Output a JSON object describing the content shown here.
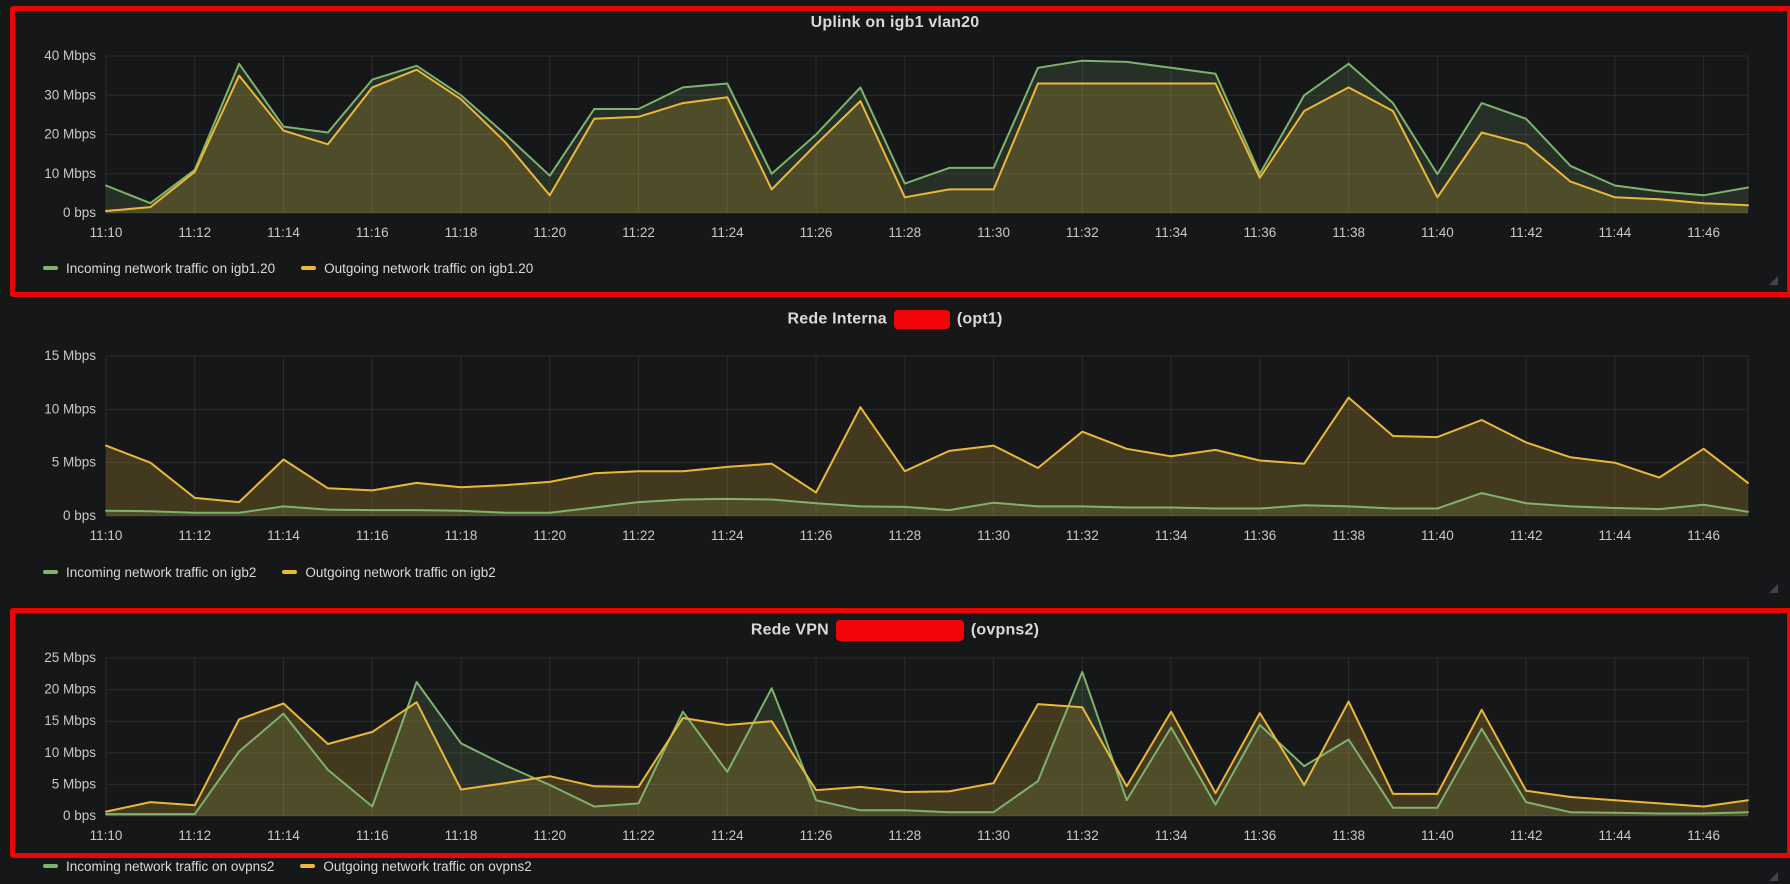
{
  "page": {
    "background_color": "#161719",
    "annotation_color": "#ed0505",
    "redaction_color": "#f20509",
    "text_color": "#d8d9da",
    "grid_color": "rgba(255,255,255,0.09)"
  },
  "chart_data": [
    {
      "type": "area",
      "title_prefix": "Uplink on igb1 vlan20",
      "title_redacted_segment": false,
      "title_suffix": "",
      "highlighted_with_red_box": true,
      "ylim": [
        0,
        40
      ],
      "y_tick_labels": [
        "0 bps",
        "10 Mbps",
        "20 Mbps",
        "30 Mbps",
        "40 Mbps"
      ],
      "x_tick_labels": [
        "11:10",
        "11:12",
        "11:14",
        "11:16",
        "11:18",
        "11:20",
        "11:22",
        "11:24",
        "11:26",
        "11:28",
        "11:30",
        "11:32",
        "11:34",
        "11:36",
        "11:38",
        "11:40",
        "11:42",
        "11:44",
        "11:46"
      ],
      "x_start": "11:10",
      "x_end": "11:47",
      "x_step_minutes": 1,
      "grid": true,
      "legend_position": "bottom-left",
      "series": [
        {
          "name": "Incoming network traffic on igb1.20",
          "color": "#7eb26d",
          "values_mbps": [
            7,
            2.5,
            11,
            38,
            22,
            20.5,
            34,
            37.5,
            30,
            20,
            9.5,
            26.5,
            26.5,
            32,
            33,
            10,
            20,
            32,
            7.5,
            11.5,
            11.5,
            37,
            38.8,
            38.5,
            37,
            35.5,
            10,
            30,
            38,
            28,
            9.9,
            28,
            24,
            12,
            7,
            5.5,
            4.5,
            6.5
          ]
        },
        {
          "name": "Outgoing network traffic on igb1.20",
          "color": "#eab839",
          "values_mbps": [
            0.5,
            1.5,
            10.5,
            35,
            21,
            17.5,
            32,
            36.5,
            29,
            18,
            4.5,
            24,
            24.5,
            28,
            29.5,
            6,
            17.5,
            28.5,
            4,
            6,
            6,
            33,
            33,
            33,
            33,
            33,
            9,
            26,
            32,
            26,
            4,
            20.5,
            17.5,
            8,
            4,
            3.5,
            2.5,
            2
          ]
        }
      ]
    },
    {
      "type": "area",
      "title_prefix": "Rede Interna",
      "title_redacted_segment": true,
      "title_suffix": "(opt1)",
      "highlighted_with_red_box": false,
      "ylim": [
        0,
        15
      ],
      "y_tick_labels": [
        "0 bps",
        "5 Mbps",
        "10 Mbps",
        "15 Mbps"
      ],
      "x_tick_labels": [
        "11:10",
        "11:12",
        "11:14",
        "11:16",
        "11:18",
        "11:20",
        "11:22",
        "11:24",
        "11:26",
        "11:28",
        "11:30",
        "11:32",
        "11:34",
        "11:36",
        "11:38",
        "11:40",
        "11:42",
        "11:44",
        "11:46"
      ],
      "x_start": "11:10",
      "x_end": "11:47",
      "x_step_minutes": 1,
      "grid": true,
      "legend_position": "bottom-left",
      "series": [
        {
          "name": "Incoming network traffic on igb2",
          "color": "#7eb26d",
          "values_mbps": [
            0.5,
            0.45,
            0.3,
            0.3,
            0.9,
            0.6,
            0.55,
            0.55,
            0.5,
            0.3,
            0.3,
            0.8,
            1.3,
            1.55,
            1.6,
            1.55,
            1.2,
            0.9,
            0.85,
            0.55,
            1.25,
            0.9,
            0.9,
            0.8,
            0.8,
            0.7,
            0.7,
            1.0,
            0.9,
            0.7,
            0.7,
            2.15,
            1.2,
            0.9,
            0.75,
            0.65,
            1.05,
            0.4
          ]
        },
        {
          "name": "Outgoing network traffic on igb2",
          "color": "#eab839",
          "values_mbps": [
            6.6,
            5.0,
            1.7,
            1.3,
            5.3,
            2.6,
            2.4,
            3.1,
            2.7,
            2.9,
            3.2,
            4.0,
            4.2,
            4.2,
            4.6,
            4.9,
            2.2,
            10.2,
            4.2,
            6.1,
            6.6,
            4.5,
            7.9,
            6.3,
            5.6,
            6.2,
            5.2,
            4.9,
            11.1,
            7.5,
            7.4,
            9.0,
            6.9,
            5.5,
            5.0,
            3.6,
            6.3,
            3.1
          ]
        }
      ]
    },
    {
      "type": "area",
      "title_prefix": "Rede VPN",
      "title_redacted_segment": true,
      "title_suffix": "(ovpns2)",
      "highlighted_with_red_box": true,
      "ylim": [
        0,
        25
      ],
      "y_tick_labels": [
        "0 bps",
        "5 Mbps",
        "10 Mbps",
        "15 Mbps",
        "20 Mbps",
        "25 Mbps"
      ],
      "x_tick_labels": [
        "11:10",
        "11:12",
        "11:14",
        "11:16",
        "11:18",
        "11:20",
        "11:22",
        "11:24",
        "11:26",
        "11:28",
        "11:30",
        "11:32",
        "11:34",
        "11:36",
        "11:38",
        "11:40",
        "11:42",
        "11:44",
        "11:46"
      ],
      "x_start": "11:10",
      "x_end": "11:47",
      "x_step_minutes": 1,
      "grid": true,
      "legend_position": "bottom-left",
      "series": [
        {
          "name": "Incoming network traffic on ovpns2",
          "color": "#7eb26d",
          "values_mbps": [
            0.3,
            0.3,
            0.3,
            10.2,
            16.2,
            7.3,
            1.5,
            21.2,
            11.5,
            8.0,
            4.9,
            1.5,
            2.0,
            16.5,
            7.0,
            20.2,
            2.5,
            0.9,
            0.9,
            0.6,
            0.6,
            5.5,
            22.8,
            2.5,
            14.0,
            1.8,
            14.4,
            7.9,
            12.1,
            1.3,
            1.3,
            13.8,
            2.2,
            0.6,
            0.5,
            0.4,
            0.4,
            0.6
          ]
        },
        {
          "name": "Outgoing network traffic on ovpns2",
          "color": "#eab839",
          "values_mbps": [
            0.7,
            2.2,
            1.7,
            15.3,
            17.8,
            11.4,
            13.3,
            18.0,
            4.2,
            5.2,
            6.3,
            4.7,
            4.6,
            15.5,
            14.4,
            15.0,
            4.1,
            4.6,
            3.8,
            3.9,
            5.2,
            17.7,
            17.2,
            4.7,
            16.5,
            3.6,
            16.3,
            4.9,
            18.1,
            3.5,
            3.5,
            16.8,
            4.0,
            3.0,
            2.5,
            2.0,
            1.5,
            2.5
          ]
        }
      ]
    }
  ]
}
